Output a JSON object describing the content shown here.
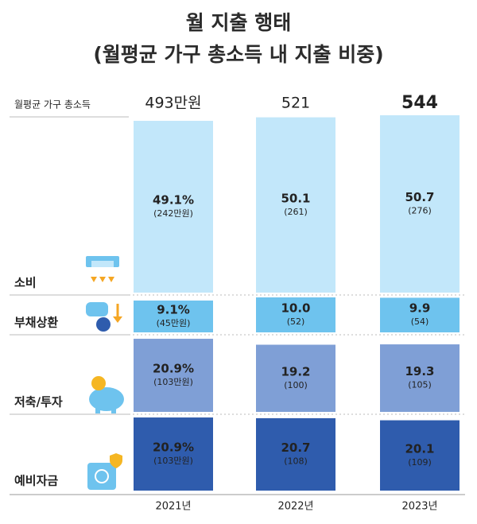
{
  "chart_data": {
    "type": "bar",
    "title": "월 지출 행태",
    "subtitle": "(월평균 가구 총소득 내 지출 비중)",
    "total_title": "월평균 가구 총소득",
    "totals": [
      493,
      521,
      544
    ],
    "total_labels": [
      "493만원",
      "521",
      "544"
    ],
    "total_colors": [
      "#8d9db3",
      "#6b809b",
      "#1f4fa0"
    ],
    "categories": [
      "2021년",
      "2022년",
      "2023년"
    ],
    "series": [
      {
        "name": "소비",
        "color": "#c2e7fa",
        "text_color": "#6b7280",
        "values": [
          49.1,
          50.1,
          50.7
        ],
        "value_labels": [
          "49.1%",
          "50.1",
          "50.7"
        ],
        "amounts": [
          242,
          261,
          276
        ],
        "amount_labels": [
          "(242만원)",
          "(261)",
          "(276)"
        ]
      },
      {
        "name": "부채상환",
        "color": "#6ec3ee",
        "text_color": "#ffffff",
        "values": [
          9.1,
          10.0,
          9.9
        ],
        "value_labels": [
          "9.1%",
          "10.0",
          "9.9"
        ],
        "amounts": [
          45,
          52,
          54
        ],
        "amount_labels": [
          "(45만원)",
          "(52)",
          "(54)"
        ]
      },
      {
        "name": "저축/투자",
        "color": "#7f9fd6",
        "text_color": "#ffffff",
        "values": [
          20.9,
          19.2,
          19.3
        ],
        "value_labels": [
          "20.9%",
          "19.2",
          "19.3"
        ],
        "amounts": [
          103,
          100,
          105
        ],
        "amount_labels": [
          "(103만원)",
          "(100)",
          "(105)"
        ]
      },
      {
        "name": "예비자금",
        "color": "#2f5cad",
        "text_color": "#ffffff",
        "values": [
          20.9,
          20.7,
          20.1
        ],
        "value_labels": [
          "20.9%",
          "20.7",
          "20.1"
        ],
        "amounts": [
          103,
          108,
          109
        ],
        "amount_labels": [
          "(103만원)",
          "(108)",
          "(109)"
        ]
      }
    ]
  }
}
